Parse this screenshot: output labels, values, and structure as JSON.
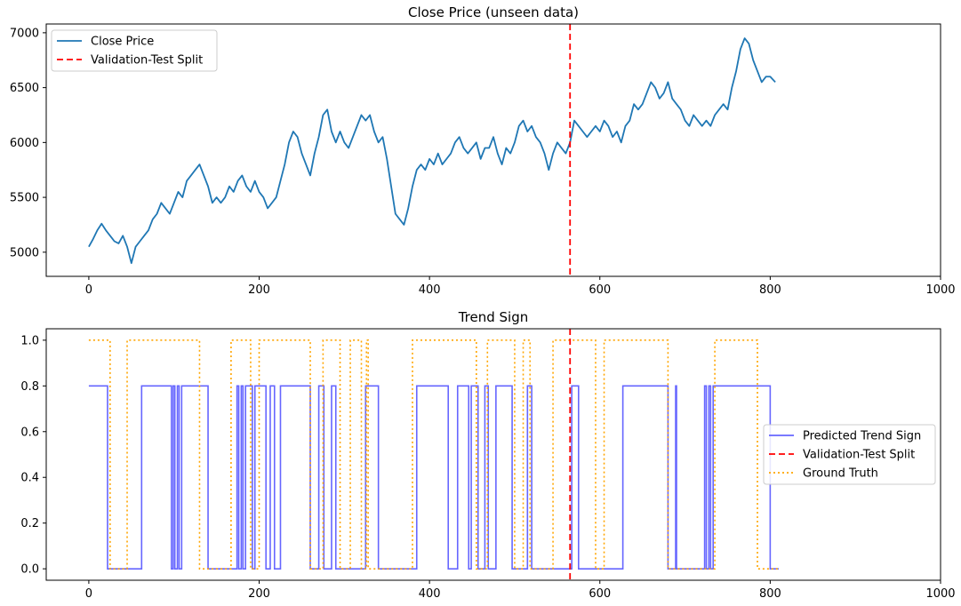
{
  "chart_data": [
    {
      "type": "line",
      "title": "Close Price (unseen data)",
      "xlabel": "",
      "ylabel": "",
      "xlim": [
        -50,
        1000
      ],
      "ylim": [
        4780,
        7080
      ],
      "xticks": [
        0,
        200,
        400,
        600,
        800,
        1000
      ],
      "yticks": [
        5000,
        5500,
        6000,
        6500,
        7000
      ],
      "grid": false,
      "legend_position": "top-left",
      "split_x": 565,
      "series": [
        {
          "name": "Close Price",
          "color": "#1f77b4",
          "style": "solid",
          "points": [
            [
              0,
              5050
            ],
            [
              5,
              5120
            ],
            [
              10,
              5200
            ],
            [
              15,
              5260
            ],
            [
              20,
              5200
            ],
            [
              25,
              5150
            ],
            [
              30,
              5100
            ],
            [
              35,
              5080
            ],
            [
              40,
              5150
            ],
            [
              45,
              5050
            ],
            [
              50,
              4900
            ],
            [
              55,
              5050
            ],
            [
              60,
              5100
            ],
            [
              65,
              5150
            ],
            [
              70,
              5200
            ],
            [
              75,
              5300
            ],
            [
              80,
              5350
            ],
            [
              85,
              5450
            ],
            [
              90,
              5400
            ],
            [
              95,
              5350
            ],
            [
              100,
              5450
            ],
            [
              105,
              5550
            ],
            [
              110,
              5500
            ],
            [
              115,
              5650
            ],
            [
              120,
              5700
            ],
            [
              125,
              5750
            ],
            [
              130,
              5800
            ],
            [
              135,
              5700
            ],
            [
              140,
              5600
            ],
            [
              145,
              5450
            ],
            [
              150,
              5500
            ],
            [
              155,
              5450
            ],
            [
              160,
              5500
            ],
            [
              165,
              5600
            ],
            [
              170,
              5550
            ],
            [
              175,
              5650
            ],
            [
              180,
              5700
            ],
            [
              185,
              5600
            ],
            [
              190,
              5550
            ],
            [
              195,
              5650
            ],
            [
              200,
              5550
            ],
            [
              205,
              5500
            ],
            [
              210,
              5400
            ],
            [
              215,
              5450
            ],
            [
              220,
              5500
            ],
            [
              225,
              5650
            ],
            [
              230,
              5800
            ],
            [
              235,
              6000
            ],
            [
              240,
              6100
            ],
            [
              245,
              6050
            ],
            [
              250,
              5900
            ],
            [
              255,
              5800
            ],
            [
              260,
              5700
            ],
            [
              265,
              5900
            ],
            [
              270,
              6050
            ],
            [
              275,
              6250
            ],
            [
              280,
              6300
            ],
            [
              285,
              6100
            ],
            [
              290,
              6000
            ],
            [
              295,
              6100
            ],
            [
              300,
              6000
            ],
            [
              305,
              5950
            ],
            [
              310,
              6050
            ],
            [
              315,
              6150
            ],
            [
              320,
              6250
            ],
            [
              325,
              6200
            ],
            [
              330,
              6250
            ],
            [
              335,
              6100
            ],
            [
              340,
              6000
            ],
            [
              345,
              6050
            ],
            [
              350,
              5850
            ],
            [
              355,
              5600
            ],
            [
              360,
              5350
            ],
            [
              365,
              5300
            ],
            [
              370,
              5250
            ],
            [
              375,
              5400
            ],
            [
              380,
              5600
            ],
            [
              385,
              5750
            ],
            [
              390,
              5800
            ],
            [
              395,
              5750
            ],
            [
              400,
              5850
            ],
            [
              405,
              5800
            ],
            [
              410,
              5900
            ],
            [
              415,
              5800
            ],
            [
              420,
              5850
            ],
            [
              425,
              5900
            ],
            [
              430,
              6000
            ],
            [
              435,
              6050
            ],
            [
              440,
              5950
            ],
            [
              445,
              5900
            ],
            [
              450,
              5950
            ],
            [
              455,
              6000
            ],
            [
              460,
              5850
            ],
            [
              465,
              5950
            ],
            [
              470,
              5950
            ],
            [
              475,
              6050
            ],
            [
              480,
              5900
            ],
            [
              485,
              5800
            ],
            [
              490,
              5950
            ],
            [
              495,
              5900
            ],
            [
              500,
              6000
            ],
            [
              505,
              6150
            ],
            [
              510,
              6200
            ],
            [
              515,
              6100
            ],
            [
              520,
              6150
            ],
            [
              525,
              6050
            ],
            [
              530,
              6000
            ],
            [
              535,
              5900
            ],
            [
              540,
              5750
            ],
            [
              545,
              5900
            ],
            [
              550,
              6000
            ],
            [
              555,
              5950
            ],
            [
              560,
              5900
            ],
            [
              565,
              6000
            ],
            [
              570,
              6200
            ],
            [
              575,
              6150
            ],
            [
              580,
              6100
            ],
            [
              585,
              6050
            ],
            [
              590,
              6100
            ],
            [
              595,
              6150
            ],
            [
              600,
              6100
            ],
            [
              605,
              6200
            ],
            [
              610,
              6150
            ],
            [
              615,
              6050
            ],
            [
              620,
              6100
            ],
            [
              625,
              6000
            ],
            [
              630,
              6150
            ],
            [
              635,
              6200
            ],
            [
              640,
              6350
            ],
            [
              645,
              6300
            ],
            [
              650,
              6350
            ],
            [
              655,
              6450
            ],
            [
              660,
              6550
            ],
            [
              665,
              6500
            ],
            [
              670,
              6400
            ],
            [
              675,
              6450
            ],
            [
              680,
              6550
            ],
            [
              685,
              6400
            ],
            [
              690,
              6350
            ],
            [
              695,
              6300
            ],
            [
              700,
              6200
            ],
            [
              705,
              6150
            ],
            [
              710,
              6250
            ],
            [
              715,
              6200
            ],
            [
              720,
              6150
            ],
            [
              725,
              6200
            ],
            [
              730,
              6150
            ],
            [
              735,
              6250
            ],
            [
              740,
              6300
            ],
            [
              745,
              6350
            ],
            [
              750,
              6300
            ],
            [
              755,
              6500
            ],
            [
              760,
              6650
            ],
            [
              765,
              6850
            ],
            [
              770,
              6950
            ],
            [
              775,
              6900
            ],
            [
              780,
              6750
            ],
            [
              785,
              6650
            ],
            [
              790,
              6550
            ],
            [
              795,
              6600
            ],
            [
              800,
              6600
            ],
            [
              806,
              6550
            ]
          ]
        },
        {
          "name": "Validation-Test Split",
          "color": "#ff0000",
          "style": "dashed"
        }
      ]
    },
    {
      "type": "line",
      "title": "Trend Sign",
      "xlabel": "",
      "ylabel": "",
      "xlim": [
        -50,
        1000
      ],
      "ylim": [
        -0.05,
        1.05
      ],
      "xticks": [
        0,
        200,
        400,
        600,
        800,
        1000
      ],
      "yticks": [
        0.0,
        0.2,
        0.4,
        0.6,
        0.8,
        1.0
      ],
      "grid": false,
      "legend_position": "center-right",
      "split_x": 565,
      "series": [
        {
          "name": "Predicted Trend Sign",
          "color": "#6666ff",
          "style": "solid",
          "step_intervals": [
            [
              0,
              22
            ],
            [
              62,
              97
            ],
            [
              99,
              101
            ],
            [
              104,
              106
            ],
            [
              109,
              140
            ],
            [
              174,
              176
            ],
            [
              179,
              181
            ],
            [
              184,
              192
            ],
            [
              195,
              208
            ],
            [
              213,
              218
            ],
            [
              225,
              260
            ],
            [
              270,
              276
            ],
            [
              285,
              290
            ],
            [
              325,
              340
            ],
            [
              385,
              422
            ],
            [
              433,
              446
            ],
            [
              449,
              457
            ],
            [
              465,
              469
            ],
            [
              478,
              497
            ],
            [
              515,
              520
            ],
            [
              567,
              575
            ],
            [
              627,
              680
            ],
            [
              689,
              690
            ],
            [
              723,
              725
            ],
            [
              728,
              730
            ],
            [
              733,
              800
            ]
          ],
          "high": 0.8,
          "low": 0.0,
          "x_end": 810
        },
        {
          "name": "Validation-Test Split",
          "color": "#ff0000",
          "style": "dashed"
        },
        {
          "name": "Ground Truth",
          "color": "#ffa500",
          "style": "dotted",
          "step_intervals": [
            [
              0,
              25
            ],
            [
              45,
              130
            ],
            [
              167,
              190
            ],
            [
              200,
              260
            ],
            [
              275,
              295
            ],
            [
              307,
              320
            ],
            [
              326,
              328
            ],
            [
              380,
              455
            ],
            [
              468,
              500
            ],
            [
              510,
              518
            ],
            [
              545,
              595
            ],
            [
              605,
              680
            ],
            [
              735,
              785
            ]
          ],
          "high": 1.0,
          "low": 0.0,
          "x_end": 810
        }
      ]
    }
  ]
}
